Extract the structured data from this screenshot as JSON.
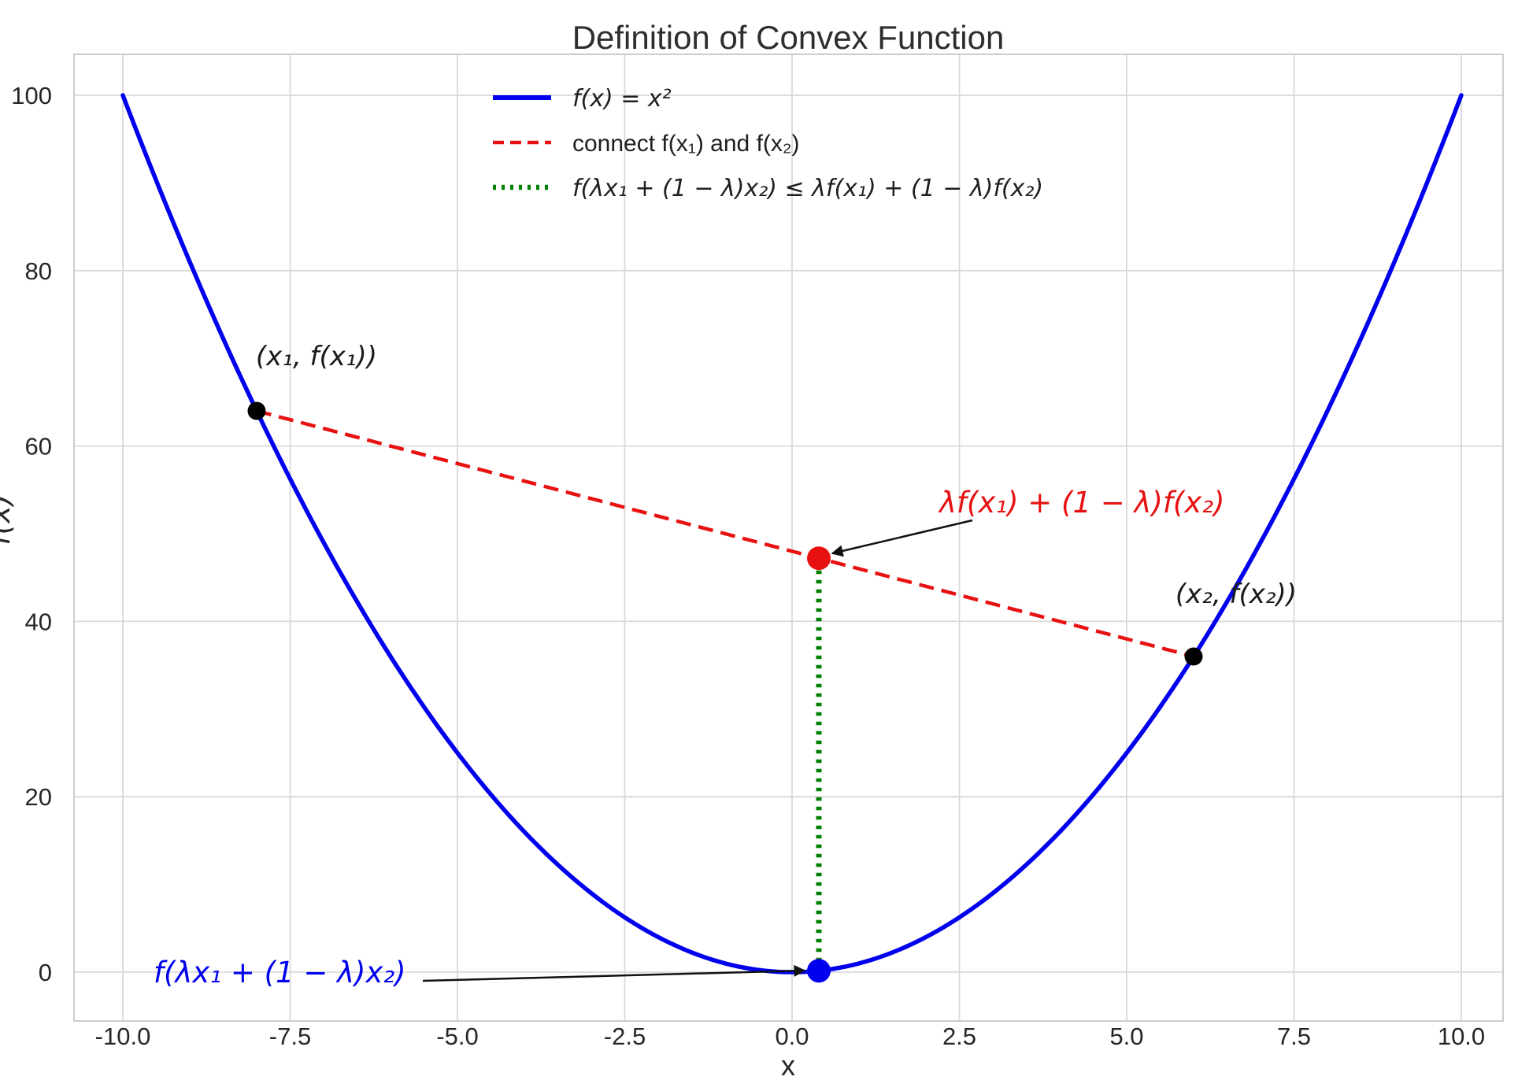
{
  "title": "Definition of Convex Function",
  "chart_data": {
    "type": "line",
    "title": "Definition of Convex Function",
    "xlabel": "x",
    "ylabel": "f(x)",
    "xlim": [
      -10.73,
      10.62
    ],
    "ylim": [
      -5.6,
      104.7
    ],
    "grid": true,
    "grid_color": "#d9d9d9",
    "axes_edge_color": "#cccccc",
    "x_ticks": {
      "values": [
        -10,
        -7.5,
        -5,
        -2.5,
        0,
        2.5,
        5,
        7.5,
        10
      ],
      "labels": [
        "-10.0",
        "-7.5",
        "-5.0",
        "-2.5",
        "0.0",
        "2.5",
        "5.0",
        "7.5",
        "10.0"
      ]
    },
    "y_ticks": {
      "values": [
        0,
        20,
        40,
        60,
        80,
        100
      ],
      "labels": [
        "0",
        "20",
        "40",
        "60",
        "80",
        "100"
      ]
    },
    "series": [
      {
        "name": "f(x) = x²",
        "style": "solid",
        "color": "#0000EE",
        "equation": "y = x^2",
        "x_start": -10,
        "x_end": 10
      },
      {
        "name": "connect f(x₁) and f(x₂)",
        "style": "dashed",
        "color": "#E81111",
        "points": [
          [
            -8,
            64
          ],
          [
            6,
            36
          ]
        ]
      },
      {
        "name": "f(λx₁ + (1 − λ)x₂) ≤ λf(x₁) + (1 − λ)f(x₂)",
        "style": "dotted",
        "color": "#008000",
        "points": [
          [
            0.4,
            0.16
          ],
          [
            0.4,
            47.2
          ]
        ]
      }
    ],
    "markers": [
      {
        "x": -8,
        "y": 64,
        "color": "#000000",
        "r": 11.5
      },
      {
        "x": 6,
        "y": 36,
        "color": "#000000",
        "r": 11.5
      },
      {
        "x": 0.4,
        "y": 47.2,
        "color": "#E81111",
        "r": 15
      },
      {
        "x": 0.4,
        "y": 0.16,
        "color": "#0000EE",
        "r": 15
      }
    ],
    "legend": {
      "position": "upper center-left",
      "frame": false
    }
  },
  "annotations": {
    "p1": {
      "text": "(x₁, f(x₁))",
      "color": "#1a1a1a"
    },
    "p2": {
      "text": "(x₂, f(x₂))",
      "color": "#1a1a1a"
    },
    "chord_value": {
      "text": "λf(x₁) + (1 − λ)f(x₂)",
      "color": "#E81111"
    },
    "function_value": {
      "text": "f(λx₁ + (1 − λ)x₂)",
      "color": "#0000EE"
    }
  }
}
